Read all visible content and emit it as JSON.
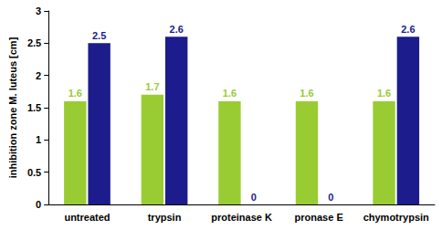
{
  "chart_data": {
    "type": "bar",
    "y_label": "inhibition zone M. luteus [cm]",
    "categories": [
      "untreated",
      "trypsin",
      "proteinase K",
      "pronase E",
      "chymotrypsin"
    ],
    "series": [
      {
        "color": "#99cc33",
        "values": [
          1.6,
          1.7,
          1.6,
          1.6,
          1.6
        ]
      },
      {
        "color": "#1c1c8c",
        "values": [
          2.5,
          2.6,
          0,
          0,
          2.6
        ]
      }
    ],
    "ylim": [
      0,
      3
    ],
    "yticks": [
      0,
      0.5,
      1,
      1.5,
      2,
      2.5,
      3
    ],
    "grid": false,
    "data_labels": true
  }
}
